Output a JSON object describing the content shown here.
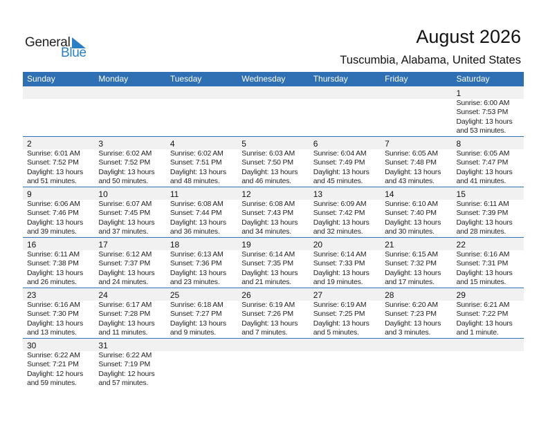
{
  "logo": {
    "general": "General",
    "blue": "Blue"
  },
  "header": {
    "title": "August 2026",
    "location": "Tuscumbia, Alabama, United States"
  },
  "colors": {
    "accent": "#2e70b3",
    "logo_blue": "#2a7fc4",
    "band": "#f1f1f1"
  },
  "weekdays": [
    "Sunday",
    "Monday",
    "Tuesday",
    "Wednesday",
    "Thursday",
    "Friday",
    "Saturday"
  ],
  "weeks": [
    [
      null,
      null,
      null,
      null,
      null,
      null,
      {
        "day": "1",
        "sunrise": "Sunrise: 6:00 AM",
        "sunset": "Sunset: 7:53 PM",
        "daylight": "Daylight: 13 hours",
        "minutes": "and 53 minutes."
      }
    ],
    [
      {
        "day": "2",
        "sunrise": "Sunrise: 6:01 AM",
        "sunset": "Sunset: 7:52 PM",
        "daylight": "Daylight: 13 hours",
        "minutes": "and 51 minutes."
      },
      {
        "day": "3",
        "sunrise": "Sunrise: 6:02 AM",
        "sunset": "Sunset: 7:52 PM",
        "daylight": "Daylight: 13 hours",
        "minutes": "and 50 minutes."
      },
      {
        "day": "4",
        "sunrise": "Sunrise: 6:02 AM",
        "sunset": "Sunset: 7:51 PM",
        "daylight": "Daylight: 13 hours",
        "minutes": "and 48 minutes."
      },
      {
        "day": "5",
        "sunrise": "Sunrise: 6:03 AM",
        "sunset": "Sunset: 7:50 PM",
        "daylight": "Daylight: 13 hours",
        "minutes": "and 46 minutes."
      },
      {
        "day": "6",
        "sunrise": "Sunrise: 6:04 AM",
        "sunset": "Sunset: 7:49 PM",
        "daylight": "Daylight: 13 hours",
        "minutes": "and 45 minutes."
      },
      {
        "day": "7",
        "sunrise": "Sunrise: 6:05 AM",
        "sunset": "Sunset: 7:48 PM",
        "daylight": "Daylight: 13 hours",
        "minutes": "and 43 minutes."
      },
      {
        "day": "8",
        "sunrise": "Sunrise: 6:05 AM",
        "sunset": "Sunset: 7:47 PM",
        "daylight": "Daylight: 13 hours",
        "minutes": "and 41 minutes."
      }
    ],
    [
      {
        "day": "9",
        "sunrise": "Sunrise: 6:06 AM",
        "sunset": "Sunset: 7:46 PM",
        "daylight": "Daylight: 13 hours",
        "minutes": "and 39 minutes."
      },
      {
        "day": "10",
        "sunrise": "Sunrise: 6:07 AM",
        "sunset": "Sunset: 7:45 PM",
        "daylight": "Daylight: 13 hours",
        "minutes": "and 37 minutes."
      },
      {
        "day": "11",
        "sunrise": "Sunrise: 6:08 AM",
        "sunset": "Sunset: 7:44 PM",
        "daylight": "Daylight: 13 hours",
        "minutes": "and 36 minutes."
      },
      {
        "day": "12",
        "sunrise": "Sunrise: 6:08 AM",
        "sunset": "Sunset: 7:43 PM",
        "daylight": "Daylight: 13 hours",
        "minutes": "and 34 minutes."
      },
      {
        "day": "13",
        "sunrise": "Sunrise: 6:09 AM",
        "sunset": "Sunset: 7:42 PM",
        "daylight": "Daylight: 13 hours",
        "minutes": "and 32 minutes."
      },
      {
        "day": "14",
        "sunrise": "Sunrise: 6:10 AM",
        "sunset": "Sunset: 7:40 PM",
        "daylight": "Daylight: 13 hours",
        "minutes": "and 30 minutes."
      },
      {
        "day": "15",
        "sunrise": "Sunrise: 6:11 AM",
        "sunset": "Sunset: 7:39 PM",
        "daylight": "Daylight: 13 hours",
        "minutes": "and 28 minutes."
      }
    ],
    [
      {
        "day": "16",
        "sunrise": "Sunrise: 6:11 AM",
        "sunset": "Sunset: 7:38 PM",
        "daylight": "Daylight: 13 hours",
        "minutes": "and 26 minutes."
      },
      {
        "day": "17",
        "sunrise": "Sunrise: 6:12 AM",
        "sunset": "Sunset: 7:37 PM",
        "daylight": "Daylight: 13 hours",
        "minutes": "and 24 minutes."
      },
      {
        "day": "18",
        "sunrise": "Sunrise: 6:13 AM",
        "sunset": "Sunset: 7:36 PM",
        "daylight": "Daylight: 13 hours",
        "minutes": "and 23 minutes."
      },
      {
        "day": "19",
        "sunrise": "Sunrise: 6:14 AM",
        "sunset": "Sunset: 7:35 PM",
        "daylight": "Daylight: 13 hours",
        "minutes": "and 21 minutes."
      },
      {
        "day": "20",
        "sunrise": "Sunrise: 6:14 AM",
        "sunset": "Sunset: 7:33 PM",
        "daylight": "Daylight: 13 hours",
        "minutes": "and 19 minutes."
      },
      {
        "day": "21",
        "sunrise": "Sunrise: 6:15 AM",
        "sunset": "Sunset: 7:32 PM",
        "daylight": "Daylight: 13 hours",
        "minutes": "and 17 minutes."
      },
      {
        "day": "22",
        "sunrise": "Sunrise: 6:16 AM",
        "sunset": "Sunset: 7:31 PM",
        "daylight": "Daylight: 13 hours",
        "minutes": "and 15 minutes."
      }
    ],
    [
      {
        "day": "23",
        "sunrise": "Sunrise: 6:16 AM",
        "sunset": "Sunset: 7:30 PM",
        "daylight": "Daylight: 13 hours",
        "minutes": "and 13 minutes."
      },
      {
        "day": "24",
        "sunrise": "Sunrise: 6:17 AM",
        "sunset": "Sunset: 7:28 PM",
        "daylight": "Daylight: 13 hours",
        "minutes": "and 11 minutes."
      },
      {
        "day": "25",
        "sunrise": "Sunrise: 6:18 AM",
        "sunset": "Sunset: 7:27 PM",
        "daylight": "Daylight: 13 hours",
        "minutes": "and 9 minutes."
      },
      {
        "day": "26",
        "sunrise": "Sunrise: 6:19 AM",
        "sunset": "Sunset: 7:26 PM",
        "daylight": "Daylight: 13 hours",
        "minutes": "and 7 minutes."
      },
      {
        "day": "27",
        "sunrise": "Sunrise: 6:19 AM",
        "sunset": "Sunset: 7:25 PM",
        "daylight": "Daylight: 13 hours",
        "minutes": "and 5 minutes."
      },
      {
        "day": "28",
        "sunrise": "Sunrise: 6:20 AM",
        "sunset": "Sunset: 7:23 PM",
        "daylight": "Daylight: 13 hours",
        "minutes": "and 3 minutes."
      },
      {
        "day": "29",
        "sunrise": "Sunrise: 6:21 AM",
        "sunset": "Sunset: 7:22 PM",
        "daylight": "Daylight: 13 hours",
        "minutes": "and 1 minute."
      }
    ],
    [
      {
        "day": "30",
        "sunrise": "Sunrise: 6:22 AM",
        "sunset": "Sunset: 7:21 PM",
        "daylight": "Daylight: 12 hours",
        "minutes": "and 59 minutes."
      },
      {
        "day": "31",
        "sunrise": "Sunrise: 6:22 AM",
        "sunset": "Sunset: 7:19 PM",
        "daylight": "Daylight: 12 hours",
        "minutes": "and 57 minutes."
      },
      null,
      null,
      null,
      null,
      null
    ]
  ]
}
